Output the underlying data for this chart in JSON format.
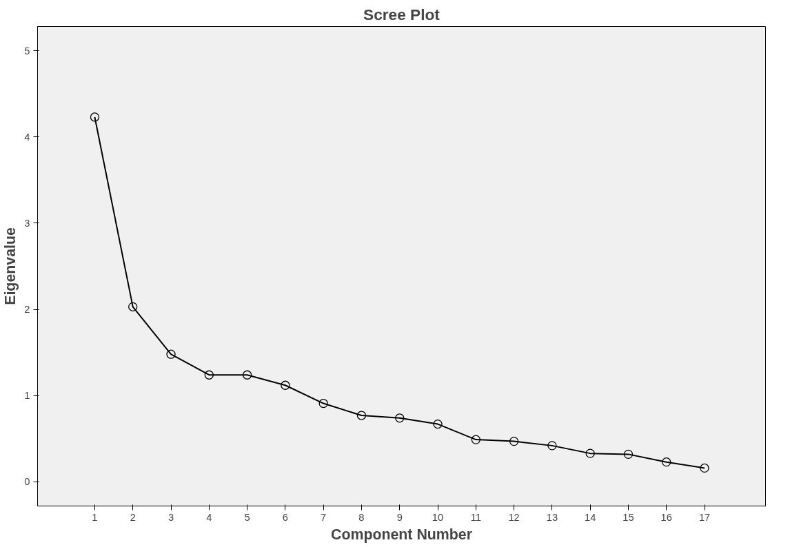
{
  "chart_data": {
    "type": "line",
    "title": "Scree Plot",
    "xlabel": "Component Number",
    "ylabel": "Eigenvalue",
    "x": [
      1,
      2,
      3,
      4,
      5,
      6,
      7,
      8,
      9,
      10,
      11,
      12,
      13,
      14,
      15,
      16,
      17
    ],
    "series": [
      {
        "color": "#000000",
        "values": [
          4.23,
          2.03,
          1.48,
          1.24,
          1.24,
          1.12,
          0.91,
          0.77,
          0.74,
          0.67,
          0.49,
          0.47,
          0.42,
          0.33,
          0.32,
          0.23,
          0.16
        ]
      }
    ],
    "xlim": [
      -0.5,
      18.6
    ],
    "xticks": [
      1,
      2,
      3,
      4,
      5,
      6,
      7,
      8,
      9,
      10,
      11,
      12,
      13,
      14,
      15,
      16,
      17
    ],
    "ylim": [
      -0.28,
      5.28
    ],
    "yticks": [
      0,
      1,
      2,
      3,
      4,
      5
    ],
    "grid": false,
    "marker": "circle",
    "line_style": "solid"
  }
}
